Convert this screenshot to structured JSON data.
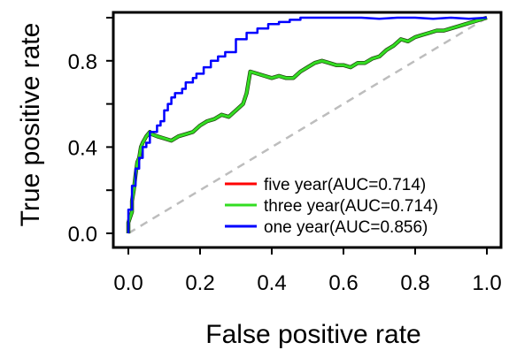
{
  "chart_data": {
    "type": "line",
    "xlabel": "False positive rate",
    "ylabel": "True positive rate",
    "xlim": [
      0,
      1
    ],
    "ylim": [
      0,
      1
    ],
    "x_ticks": [
      "0.0",
      "0.2",
      "0.4",
      "0.6",
      "0.8",
      "1.0"
    ],
    "y_ticks": [
      "0.0",
      "0.4",
      "0.8"
    ],
    "grid": false,
    "legend_position": "bottom-right",
    "diagonal": {
      "color": "#bdbdbd",
      "style": "dashed"
    },
    "series": [
      {
        "name": "five year(AUC=0.714)",
        "color": "#ff0000",
        "x": [
          0.0,
          0.0,
          0.01,
          0.01,
          0.015,
          0.02,
          0.025,
          0.03,
          0.035,
          0.04,
          0.05,
          0.06,
          0.065,
          0.08,
          0.1,
          0.12,
          0.14,
          0.16,
          0.18,
          0.2,
          0.22,
          0.24,
          0.26,
          0.28,
          0.3,
          0.32,
          0.33,
          0.34,
          0.36,
          0.38,
          0.4,
          0.42,
          0.44,
          0.46,
          0.48,
          0.5,
          0.52,
          0.54,
          0.56,
          0.58,
          0.6,
          0.62,
          0.64,
          0.66,
          0.68,
          0.7,
          0.72,
          0.74,
          0.76,
          0.78,
          0.8,
          0.82,
          0.84,
          0.86,
          0.88,
          0.9,
          0.92,
          0.94,
          0.96,
          0.98,
          1.0
        ],
        "y": [
          0.0,
          0.05,
          0.1,
          0.15,
          0.2,
          0.27,
          0.33,
          0.35,
          0.4,
          0.42,
          0.45,
          0.47,
          0.46,
          0.45,
          0.44,
          0.43,
          0.45,
          0.46,
          0.47,
          0.5,
          0.52,
          0.53,
          0.55,
          0.54,
          0.57,
          0.6,
          0.65,
          0.75,
          0.74,
          0.73,
          0.72,
          0.73,
          0.72,
          0.72,
          0.75,
          0.77,
          0.79,
          0.8,
          0.79,
          0.78,
          0.78,
          0.77,
          0.79,
          0.79,
          0.81,
          0.82,
          0.85,
          0.87,
          0.9,
          0.89,
          0.91,
          0.92,
          0.93,
          0.94,
          0.94,
          0.95,
          0.96,
          0.97,
          0.98,
          0.99,
          1.0
        ]
      },
      {
        "name": "three year(AUC=0.714)",
        "color": "#33dd22",
        "x": [
          0.0,
          0.0,
          0.01,
          0.01,
          0.015,
          0.02,
          0.025,
          0.03,
          0.035,
          0.04,
          0.05,
          0.06,
          0.065,
          0.08,
          0.1,
          0.12,
          0.14,
          0.16,
          0.18,
          0.2,
          0.22,
          0.24,
          0.26,
          0.28,
          0.3,
          0.32,
          0.33,
          0.34,
          0.36,
          0.38,
          0.4,
          0.42,
          0.44,
          0.46,
          0.48,
          0.5,
          0.52,
          0.54,
          0.56,
          0.58,
          0.6,
          0.62,
          0.64,
          0.66,
          0.68,
          0.7,
          0.72,
          0.74,
          0.76,
          0.78,
          0.8,
          0.82,
          0.84,
          0.86,
          0.88,
          0.9,
          0.92,
          0.94,
          0.96,
          0.98,
          1.0
        ],
        "y": [
          0.0,
          0.05,
          0.1,
          0.15,
          0.2,
          0.27,
          0.33,
          0.35,
          0.4,
          0.42,
          0.45,
          0.47,
          0.46,
          0.45,
          0.44,
          0.43,
          0.45,
          0.46,
          0.47,
          0.5,
          0.52,
          0.53,
          0.55,
          0.54,
          0.57,
          0.6,
          0.65,
          0.75,
          0.74,
          0.73,
          0.72,
          0.73,
          0.72,
          0.72,
          0.75,
          0.77,
          0.79,
          0.8,
          0.79,
          0.78,
          0.78,
          0.77,
          0.79,
          0.79,
          0.81,
          0.82,
          0.85,
          0.87,
          0.9,
          0.89,
          0.91,
          0.92,
          0.93,
          0.94,
          0.94,
          0.95,
          0.96,
          0.97,
          0.98,
          0.99,
          1.0
        ]
      },
      {
        "name": "one year(AUC=0.856)",
        "color": "#0000ff",
        "x": [
          0.0,
          0.0,
          0.01,
          0.01,
          0.02,
          0.02,
          0.03,
          0.03,
          0.04,
          0.04,
          0.05,
          0.05,
          0.06,
          0.06,
          0.07,
          0.08,
          0.08,
          0.09,
          0.09,
          0.1,
          0.1,
          0.11,
          0.11,
          0.12,
          0.12,
          0.13,
          0.13,
          0.15,
          0.15,
          0.16,
          0.16,
          0.18,
          0.18,
          0.19,
          0.19,
          0.21,
          0.21,
          0.23,
          0.23,
          0.25,
          0.25,
          0.27,
          0.27,
          0.3,
          0.3,
          0.33,
          0.33,
          0.36,
          0.36,
          0.39,
          0.39,
          0.42,
          0.42,
          0.45,
          0.45,
          0.48,
          0.48,
          0.52,
          0.52,
          0.56,
          0.6,
          0.65,
          0.7,
          0.75,
          0.8,
          0.85,
          0.9,
          0.95,
          1.0
        ],
        "y": [
          0.0,
          0.11,
          0.11,
          0.22,
          0.22,
          0.3,
          0.3,
          0.35,
          0.35,
          0.4,
          0.4,
          0.42,
          0.42,
          0.47,
          0.47,
          0.47,
          0.5,
          0.5,
          0.52,
          0.52,
          0.57,
          0.57,
          0.6,
          0.6,
          0.63,
          0.63,
          0.65,
          0.65,
          0.67,
          0.67,
          0.7,
          0.7,
          0.72,
          0.72,
          0.74,
          0.74,
          0.77,
          0.77,
          0.8,
          0.8,
          0.82,
          0.82,
          0.84,
          0.84,
          0.9,
          0.9,
          0.93,
          0.93,
          0.95,
          0.95,
          0.97,
          0.97,
          0.98,
          0.98,
          0.99,
          0.99,
          1.0,
          1.0,
          1.0,
          1.0,
          1.0,
          1.0,
          0.995,
          1.0,
          1.0,
          0.995,
          1.0,
          0.995,
          1.0
        ]
      }
    ]
  }
}
